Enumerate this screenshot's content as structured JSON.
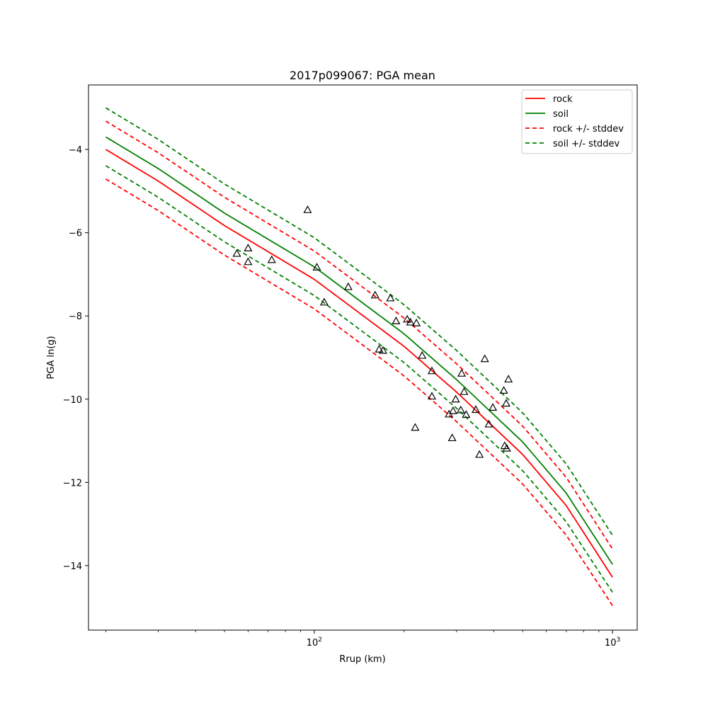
{
  "chart_data": {
    "type": "line",
    "title": "2017p099067: PGA mean",
    "xlabel": "Rrup (km)",
    "ylabel": "PGA ln(g)",
    "xscale": "log",
    "xlim": [
      17.5,
      1210
    ],
    "ylim": [
      -15.55,
      -2.45
    ],
    "x_ticks": [
      {
        "value": 100,
        "label": "10",
        "exp": "2"
      },
      {
        "value": 1000,
        "label": "10",
        "exp": "3"
      }
    ],
    "y_ticks": [
      {
        "value": -4,
        "label": "−4"
      },
      {
        "value": -6,
        "label": "−6"
      },
      {
        "value": -8,
        "label": "−8"
      },
      {
        "value": -10,
        "label": "−10"
      },
      {
        "value": -12,
        "label": "−12"
      },
      {
        "value": -14,
        "label": "−14"
      }
    ],
    "legend_position": "top-right",
    "grid": false,
    "series": [
      {
        "name": "rock",
        "color": "#ff0000",
        "dash": "solid",
        "x": [
          20,
          30,
          50,
          100,
          200,
          300,
          500,
          700,
          1000
        ],
        "y": [
          -4.0,
          -4.76,
          -5.83,
          -7.12,
          -8.73,
          -9.83,
          -11.33,
          -12.56,
          -14.28
        ]
      },
      {
        "name": "soil",
        "color": "#008000",
        "dash": "solid",
        "x": [
          20,
          30,
          50,
          100,
          200,
          300,
          500,
          700,
          1000
        ],
        "y": [
          -3.7,
          -4.46,
          -5.53,
          -6.82,
          -8.43,
          -9.53,
          -11.03,
          -12.26,
          -13.97
        ]
      },
      {
        "name": "rock +/- stddev",
        "color": "#ff0000",
        "dash": "dashed",
        "x": [
          20,
          30,
          50,
          100,
          200,
          300,
          500,
          700,
          1000
        ],
        "y": [
          -3.32,
          -4.08,
          -5.15,
          -6.44,
          -8.05,
          -9.15,
          -10.65,
          -11.88,
          -13.6
        ]
      },
      {
        "name": "",
        "color": "#ff0000",
        "dash": "dashed",
        "x": [
          20,
          30,
          50,
          100,
          200,
          300,
          500,
          700,
          1000
        ],
        "y": [
          -4.71,
          -5.47,
          -6.54,
          -7.83,
          -9.44,
          -10.54,
          -12.04,
          -13.27,
          -14.96
        ]
      },
      {
        "name": "soil +/- stddev",
        "color": "#008000",
        "dash": "dashed",
        "x": [
          20,
          30,
          50,
          100,
          200,
          300,
          500,
          700,
          1000
        ],
        "y": [
          -3.0,
          -3.76,
          -4.83,
          -6.12,
          -7.73,
          -8.83,
          -10.33,
          -11.56,
          -13.27
        ]
      },
      {
        "name": "",
        "color": "#008000",
        "dash": "dashed",
        "x": [
          20,
          30,
          50,
          100,
          200,
          300,
          500,
          700,
          1000
        ],
        "y": [
          -4.39,
          -5.15,
          -6.22,
          -7.51,
          -9.12,
          -10.22,
          -11.72,
          -12.95,
          -14.64
        ]
      }
    ],
    "observations": {
      "marker": "triangle",
      "color": "#000000",
      "points": [
        {
          "x": 95,
          "y": -5.45
        },
        {
          "x": 55,
          "y": -6.5
        },
        {
          "x": 60,
          "y": -6.37
        },
        {
          "x": 60,
          "y": -6.7
        },
        {
          "x": 72,
          "y": -6.65
        },
        {
          "x": 102,
          "y": -6.83
        },
        {
          "x": 108,
          "y": -7.67
        },
        {
          "x": 130,
          "y": -7.3
        },
        {
          "x": 160,
          "y": -7.5
        },
        {
          "x": 180,
          "y": -7.57
        },
        {
          "x": 165,
          "y": -8.8
        },
        {
          "x": 170,
          "y": -8.83
        },
        {
          "x": 188,
          "y": -8.12
        },
        {
          "x": 205,
          "y": -8.08
        },
        {
          "x": 210,
          "y": -8.15
        },
        {
          "x": 220,
          "y": -8.17
        },
        {
          "x": 230,
          "y": -8.95
        },
        {
          "x": 248,
          "y": -9.32
        },
        {
          "x": 248,
          "y": -9.93
        },
        {
          "x": 218,
          "y": -10.68
        },
        {
          "x": 298,
          "y": -10.0
        },
        {
          "x": 312,
          "y": -9.38
        },
        {
          "x": 318,
          "y": -9.82
        },
        {
          "x": 283,
          "y": -10.36
        },
        {
          "x": 292,
          "y": -10.28
        },
        {
          "x": 310,
          "y": -10.26
        },
        {
          "x": 323,
          "y": -10.37
        },
        {
          "x": 290,
          "y": -10.93
        },
        {
          "x": 348,
          "y": -10.25
        },
        {
          "x": 358,
          "y": -11.33
        },
        {
          "x": 373,
          "y": -9.03
        },
        {
          "x": 385,
          "y": -10.6
        },
        {
          "x": 397,
          "y": -10.2
        },
        {
          "x": 432,
          "y": -9.79
        },
        {
          "x": 440,
          "y": -10.1
        },
        {
          "x": 448,
          "y": -9.52
        },
        {
          "x": 435,
          "y": -11.12
        },
        {
          "x": 442,
          "y": -11.18
        }
      ]
    }
  }
}
